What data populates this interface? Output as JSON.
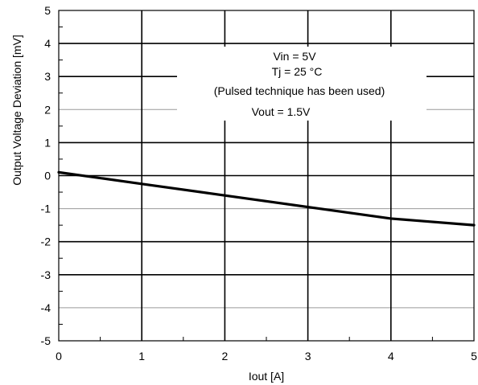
{
  "chart_data": {
    "type": "line",
    "xlabel": "Iout [A]",
    "ylabel": "Output Voltage Deviation [mV]",
    "xlim": [
      0,
      5
    ],
    "ylim": [
      -5,
      5
    ],
    "x_ticks": [
      "0",
      "1",
      "2",
      "3",
      "4",
      "5"
    ],
    "y_ticks": [
      "5",
      "4",
      "3",
      "2",
      "1",
      "0",
      "-1",
      "-2",
      "-3",
      "-4",
      "-5"
    ],
    "grid": true,
    "series": [
      {
        "color": "#000000",
        "x": [
          0,
          1,
          2,
          3,
          4,
          5
        ],
        "y": [
          0.1,
          -0.25,
          -0.6,
          -0.95,
          -1.3,
          -1.5
        ]
      }
    ],
    "annotations": {
      "vin": "Vin = 5V",
      "tj": "Tj = 25 °C",
      "technique": "(Pulsed technique has been used)",
      "vout": "Vout = 1.5V"
    }
  }
}
